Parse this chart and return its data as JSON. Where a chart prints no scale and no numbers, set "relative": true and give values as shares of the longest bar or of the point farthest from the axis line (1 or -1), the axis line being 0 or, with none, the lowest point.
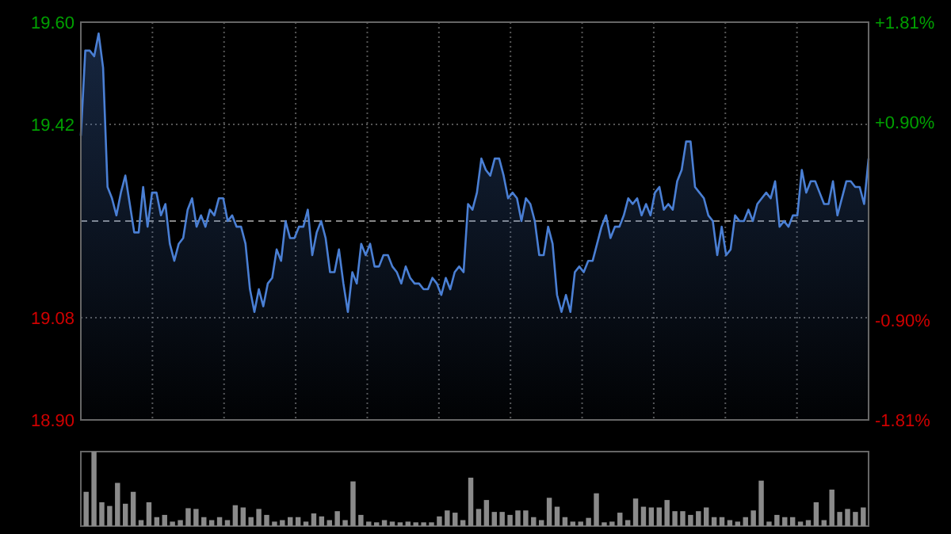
{
  "chart_data": [
    {
      "type": "area",
      "categories": [
        null,
        null,
        null,
        null,
        null,
        null,
        null,
        null,
        null,
        null,
        null,
        null,
        null,
        null,
        null,
        null,
        null,
        null,
        null,
        null,
        null,
        null,
        null,
        null,
        null,
        null,
        null,
        null,
        null,
        null,
        null,
        null,
        null,
        null,
        null,
        null,
        null,
        null,
        null,
        null,
        null,
        null,
        null,
        null,
        null,
        null,
        null,
        null,
        null,
        null,
        null,
        null,
        null,
        null,
        null,
        null,
        null,
        null,
        null,
        null,
        null,
        null,
        null,
        null,
        null,
        null,
        null,
        null,
        null,
        null,
        null,
        null,
        null,
        null,
        null,
        null,
        null,
        null,
        null,
        null,
        null,
        null,
        null,
        null,
        null,
        null,
        null,
        null,
        null,
        null,
        null,
        null,
        null,
        null,
        null,
        null,
        null,
        null,
        null,
        null,
        null,
        null,
        null,
        null,
        null,
        null,
        null,
        null,
        null,
        null,
        null,
        null,
        null,
        null,
        null,
        null,
        null,
        null,
        null,
        null,
        null,
        null,
        null,
        null,
        null,
        null,
        null,
        null,
        null,
        null,
        null,
        null,
        null,
        null,
        null,
        null,
        null,
        null,
        null,
        null,
        null,
        null,
        null,
        null,
        null,
        null,
        null,
        null,
        null,
        null,
        null,
        null,
        null,
        null,
        null,
        null,
        null,
        null,
        null,
        null,
        null,
        null,
        null,
        null,
        null,
        null,
        null,
        null,
        null,
        null,
        null,
        null,
        null,
        null,
        null,
        null,
        null,
        null
      ],
      "ylim": [
        18.9,
        19.6
      ],
      "yticks": [
        {
          "value": 18.9,
          "label": "18.90"
        },
        {
          "value": 19.08,
          "label": "19.08"
        },
        {
          "value": 19.42,
          "label": "19.42"
        },
        {
          "value": 19.6,
          "label": "19.60"
        }
      ],
      "y2lim": [
        -1.81,
        1.81
      ],
      "y2ticks": [
        {
          "value": -1.81,
          "label": "-1.81%"
        },
        {
          "value": -0.9,
          "label": "-0.90%"
        },
        {
          "value": 0.9,
          "label": "+0.90%"
        },
        {
          "value": 1.81,
          "label": "+1.81%"
        }
      ],
      "grid": true,
      "ref_lines": [
        {
          "axis": "y",
          "value": 19.25,
          "line_style": "dashed"
        }
      ],
      "series": [
        {
          "color": "#4a7fd4",
          "values": [
            19.4,
            19.55,
            19.55,
            19.54,
            19.58,
            19.52,
            19.31,
            19.29,
            19.26,
            19.3,
            19.33,
            19.28,
            19.23,
            19.23,
            19.31,
            19.24,
            19.3,
            19.3,
            19.26,
            19.28,
            19.21,
            19.18,
            19.21,
            19.22,
            19.27,
            19.29,
            19.24,
            19.26,
            19.24,
            19.27,
            19.26,
            19.29,
            19.29,
            19.25,
            19.26,
            19.24,
            19.24,
            19.21,
            19.13,
            19.09,
            19.13,
            19.1,
            19.14,
            19.15,
            19.2,
            19.18,
            19.25,
            19.22,
            19.22,
            19.24,
            19.24,
            19.27,
            19.19,
            19.23,
            19.25,
            19.22,
            19.16,
            19.16,
            19.2,
            19.14,
            19.09,
            19.16,
            19.14,
            19.21,
            19.19,
            19.21,
            19.17,
            19.17,
            19.19,
            19.19,
            19.17,
            19.16,
            19.14,
            19.17,
            19.15,
            19.14,
            19.14,
            19.13,
            19.13,
            19.15,
            19.14,
            19.12,
            19.15,
            19.13,
            19.16,
            19.17,
            19.16,
            19.28,
            19.27,
            19.3,
            19.36,
            19.34,
            19.33,
            19.36,
            19.36,
            19.33,
            19.29,
            19.3,
            19.29,
            19.25,
            19.29,
            19.28,
            19.25,
            19.19,
            19.19,
            19.24,
            19.21,
            19.12,
            19.09,
            19.12,
            19.09,
            19.16,
            19.17,
            19.16,
            19.18,
            19.18,
            19.21,
            19.24,
            19.26,
            19.22,
            19.24,
            19.24,
            19.26,
            19.29,
            19.28,
            19.29,
            19.26,
            19.28,
            19.26,
            19.3,
            19.31,
            19.27,
            19.28,
            19.27,
            19.32,
            19.34,
            19.39,
            19.39,
            19.31,
            19.3,
            19.29,
            19.26,
            19.25,
            19.19,
            19.24,
            19.19,
            19.2,
            19.26,
            19.25,
            19.25,
            19.27,
            19.25,
            19.28,
            19.29,
            19.3,
            19.29,
            19.32,
            19.24,
            19.25,
            19.24,
            19.26,
            19.26,
            19.34,
            19.3,
            19.32,
            19.32,
            19.3,
            19.28,
            19.28,
            19.32,
            19.26,
            19.29,
            19.32,
            19.32,
            19.31,
            19.31,
            19.28,
            19.36
          ]
        }
      ]
    },
    {
      "type": "bar",
      "relative": true,
      "color": "#8a8a8a",
      "categories": [
        null,
        null,
        null,
        null,
        null,
        null,
        null,
        null,
        null,
        null,
        null,
        null,
        null,
        null,
        null,
        null,
        null,
        null,
        null,
        null,
        null,
        null,
        null,
        null,
        null,
        null,
        null,
        null,
        null,
        null,
        null,
        null,
        null,
        null,
        null,
        null,
        null,
        null,
        null,
        null,
        null,
        null,
        null,
        null,
        null,
        null,
        null,
        null,
        null,
        null,
        null,
        null,
        null,
        null,
        null,
        null,
        null,
        null,
        null,
        null,
        null,
        null,
        null,
        null,
        null,
        null,
        null,
        null,
        null,
        null,
        null,
        null,
        null,
        null,
        null,
        null,
        null,
        null,
        null,
        null,
        null,
        null,
        null,
        null,
        null,
        null,
        null,
        null,
        null,
        null,
        null,
        null,
        null,
        null,
        null,
        null,
        null,
        null,
        null,
        null
      ],
      "values": [
        0.46,
        1,
        0.32,
        0.27,
        0.58,
        0.3,
        0.46,
        0.08,
        0.32,
        0.12,
        0.15,
        0.06,
        0.08,
        0.24,
        0.23,
        0.12,
        0.08,
        0.12,
        0.08,
        0.28,
        0.25,
        0.12,
        0.23,
        0.15,
        0.06,
        0.08,
        0.12,
        0.12,
        0.06,
        0.17,
        0.13,
        0.08,
        0.2,
        0.08,
        0.6,
        0.15,
        0.06,
        0.05,
        0.08,
        0.06,
        0.05,
        0.06,
        0.05,
        0.05,
        0.05,
        0.13,
        0.21,
        0.18,
        0.08,
        0.65,
        0.23,
        0.35,
        0.19,
        0.19,
        0.15,
        0.21,
        0.21,
        0.12,
        0.08,
        0.38,
        0.26,
        0.12,
        0.06,
        0.06,
        0.11,
        0.44,
        0.05,
        0.06,
        0.18,
        0.08,
        0.37,
        0.26,
        0.25,
        0.25,
        0.35,
        0.2,
        0.2,
        0.15,
        0.2,
        0.25,
        0.12,
        0.12,
        0.08,
        0.06,
        0.12,
        0.21,
        0.61,
        0.06,
        0.15,
        0.12,
        0.12,
        0.06,
        0.08,
        0.32,
        0.08,
        0.49,
        0.19,
        0.23,
        0.19,
        0.25
      ]
    }
  ]
}
